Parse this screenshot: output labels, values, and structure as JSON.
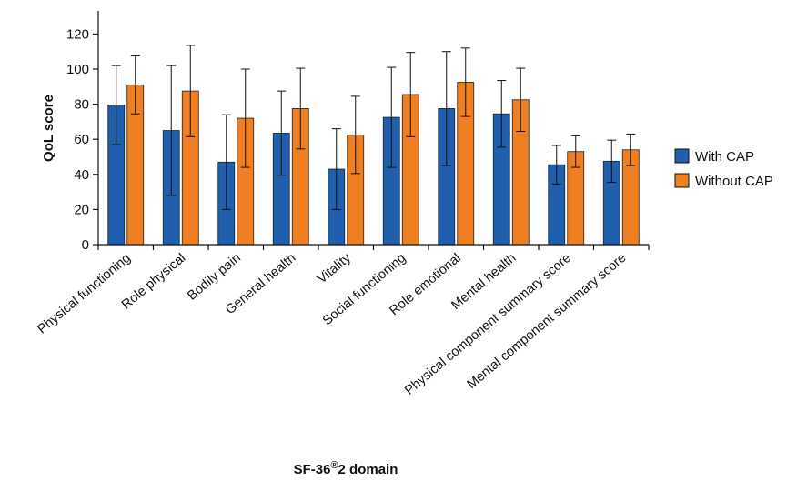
{
  "chart_data": {
    "type": "bar",
    "xlabel": "SF-36",
    "xlabel_sup": "®",
    "xlabel_suffix": "2 domain",
    "ylabel": "QoL score",
    "ylim": [
      0,
      130
    ],
    "yticks": [
      "0",
      "20",
      "40",
      "60",
      "80",
      "100",
      "120"
    ],
    "legend_position": "right",
    "categories": [
      "Physical functioning",
      "Role physical",
      "Bodily pain",
      "General health",
      "Vitality",
      "Social functioning",
      "Role emotional",
      "Mental health",
      "Physical component summary score",
      "Mental component summary score"
    ],
    "series": [
      {
        "name": "With CAP",
        "color": "#1f5fae",
        "values": [
          79.5,
          65,
          47,
          63.5,
          43,
          72.5,
          77.5,
          74.5,
          45.5,
          47.5
        ],
        "error": [
          22.5,
          37,
          27,
          24,
          23,
          28.5,
          32.5,
          19,
          11,
          12
        ]
      },
      {
        "name": "Without CAP",
        "color": "#f07f21",
        "values": [
          91,
          87.5,
          72,
          77.5,
          62.5,
          85.5,
          92.5,
          82.5,
          53,
          54
        ],
        "error": [
          16.5,
          26,
          28,
          23,
          22,
          24,
          19.5,
          18,
          9,
          9
        ]
      }
    ]
  }
}
